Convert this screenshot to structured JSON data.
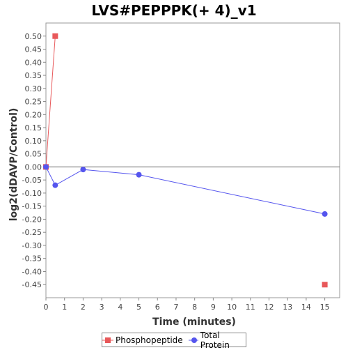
{
  "chart_data": {
    "type": "line",
    "title": "LVS#PEPPPK(+ 4)_v1",
    "xlabel": "Time (minutes)",
    "ylabel": "log2(dDAVP/Control)",
    "xlim": [
      0,
      15.8
    ],
    "ylim": [
      -0.5,
      0.55
    ],
    "x_ticks": [
      0,
      1,
      2,
      3,
      4,
      5,
      6,
      7,
      8,
      9,
      10,
      11,
      12,
      13,
      14,
      15
    ],
    "y_ticks": [
      0.5,
      0.45,
      0.4,
      0.35,
      0.3,
      0.25,
      0.2,
      0.15,
      0.1,
      0.05,
      0.0,
      -0.05,
      -0.1,
      -0.15,
      -0.2,
      -0.25,
      -0.3,
      -0.35,
      -0.4,
      -0.45
    ],
    "y_tick_labels": [
      "0.50",
      "0.45",
      "0.40",
      "0.35",
      "0.30",
      "0.25",
      "0.20",
      "0.15",
      "0.10",
      "0.05",
      "0.00",
      "-0.05",
      "-0.10",
      "-0.15",
      "-0.20",
      "-0.25",
      "-0.30",
      "-0.35",
      "-0.40",
      "-0.45"
    ],
    "zero_line": true,
    "grid": false,
    "legend_position": "bottom",
    "series": [
      {
        "name": "Phosphopeptide",
        "color": "#e8585a",
        "marker": "square",
        "points": [
          {
            "x": 0,
            "y": 0.0
          },
          {
            "x": 0.5,
            "y": 0.5
          },
          {
            "x": 15,
            "y": -0.45
          }
        ],
        "connected_until": 1
      },
      {
        "name": "Total Protein",
        "color": "#5555ee",
        "marker": "circle",
        "points": [
          {
            "x": 0,
            "y": 0.0
          },
          {
            "x": 0.5,
            "y": -0.07
          },
          {
            "x": 2,
            "y": -0.01
          },
          {
            "x": 5,
            "y": -0.03
          },
          {
            "x": 15,
            "y": -0.18
          }
        ],
        "connected_until": 4
      }
    ]
  }
}
